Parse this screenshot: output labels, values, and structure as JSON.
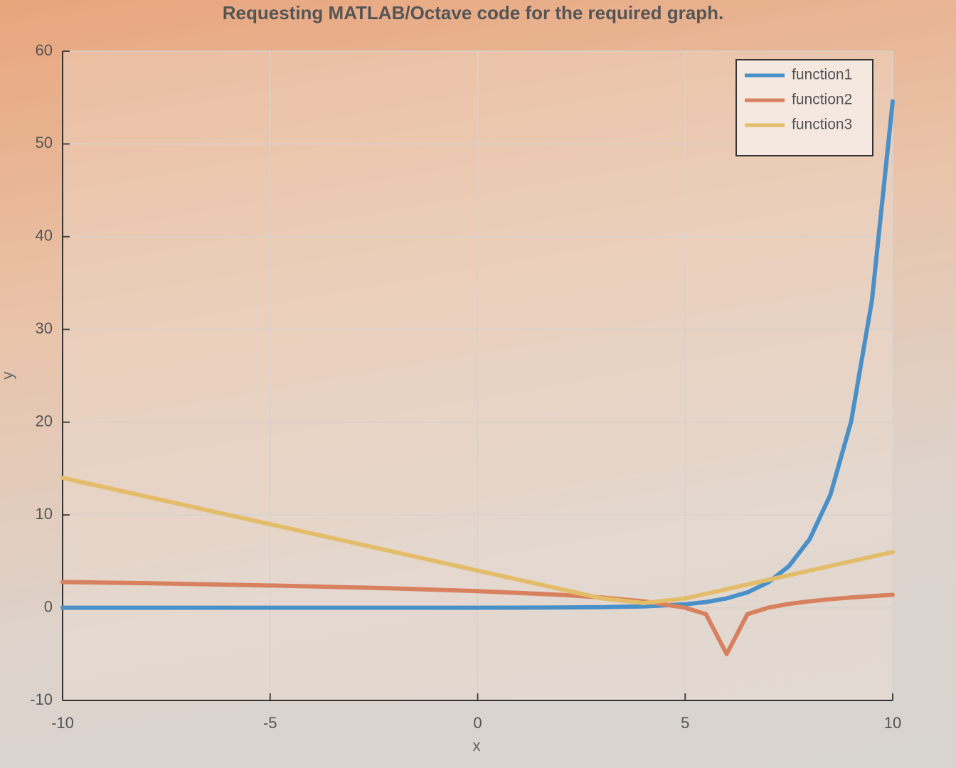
{
  "chart_data": {
    "type": "line",
    "title": "Requesting MATLAB/Octave code for the required graph.",
    "x_label": "x",
    "y_label": "y",
    "x": [
      -10,
      -8,
      -6,
      -4,
      -2,
      0,
      2,
      3,
      4,
      5,
      5.5,
      6,
      6.5,
      7,
      7.5,
      8,
      8.5,
      9,
      9.5,
      10
    ],
    "series": [
      {
        "name": "function1",
        "color": "#4a90c8",
        "values": [
          0,
          0,
          0,
          0,
          0,
          0,
          0.02,
          0.05,
          0.14,
          0.37,
          0.61,
          1,
          1.65,
          2.72,
          4.48,
          7.39,
          12.18,
          20.09,
          33.12,
          54.6
        ]
      },
      {
        "name": "function2",
        "color": "#d8815f",
        "values": [
          2.77,
          2.64,
          2.48,
          2.3,
          2.08,
          1.79,
          1.39,
          1.1,
          0.69,
          0,
          -0.69,
          -5,
          -0.69,
          0,
          0.41,
          0.69,
          0.92,
          1.1,
          1.25,
          1.39
        ]
      },
      {
        "name": "function3",
        "color": "#e3bd6a",
        "values": [
          14,
          12,
          10,
          8,
          6,
          4,
          2,
          1,
          0.5,
          1,
          1.5,
          2,
          2.5,
          3,
          3.5,
          4,
          4.5,
          5,
          5.5,
          6
        ]
      }
    ],
    "xlim": [
      -10,
      10
    ],
    "xticks": [
      -10,
      -5,
      0,
      5,
      10
    ],
    "ylim": [
      -10,
      60
    ],
    "yticks": [
      -10,
      0,
      10,
      20,
      30,
      40,
      50,
      60
    ],
    "grid": true,
    "legend": "top-right"
  }
}
